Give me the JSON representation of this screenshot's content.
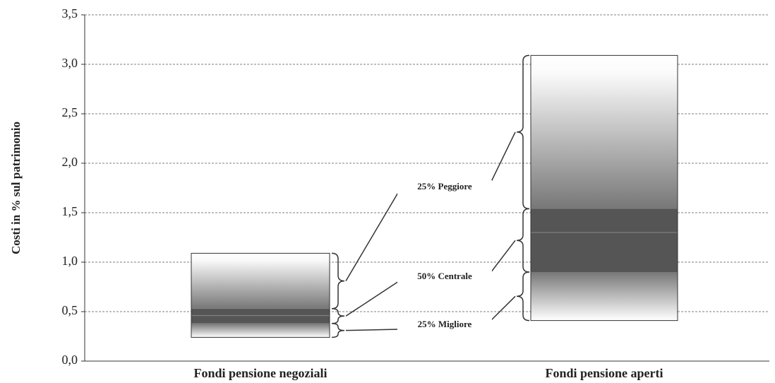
{
  "chart_data": {
    "type": "box",
    "y_label": "Costi in % sul patrimonio",
    "categories": [
      "Fondi pensione negoziali",
      "Fondi pensione aperti"
    ],
    "boxes": [
      {
        "min": 0.24,
        "q1": 0.38,
        "median": 0.46,
        "q3": 0.53,
        "max": 1.09
      },
      {
        "min": 0.41,
        "q1": 0.9,
        "median": 1.3,
        "q3": 1.54,
        "max": 3.09
      }
    ],
    "annotations": [
      "25% Peggiore",
      "50% Centrale",
      "25% Migliore"
    ],
    "ylim": [
      0,
      3.5
    ],
    "yticks": [
      {
        "value": 0,
        "label": "0,0"
      },
      {
        "value": 0.5,
        "label": "0,5"
      },
      {
        "value": 1,
        "label": "1,0"
      },
      {
        "value": 1.5,
        "label": "1,5"
      },
      {
        "value": 2,
        "label": "2,0"
      },
      {
        "value": 2.5,
        "label": "2,5"
      },
      {
        "value": 3,
        "label": "3,0"
      },
      {
        "value": 3.5,
        "label": "3,5"
      }
    ],
    "grid": true,
    "band_color": "#555555"
  }
}
